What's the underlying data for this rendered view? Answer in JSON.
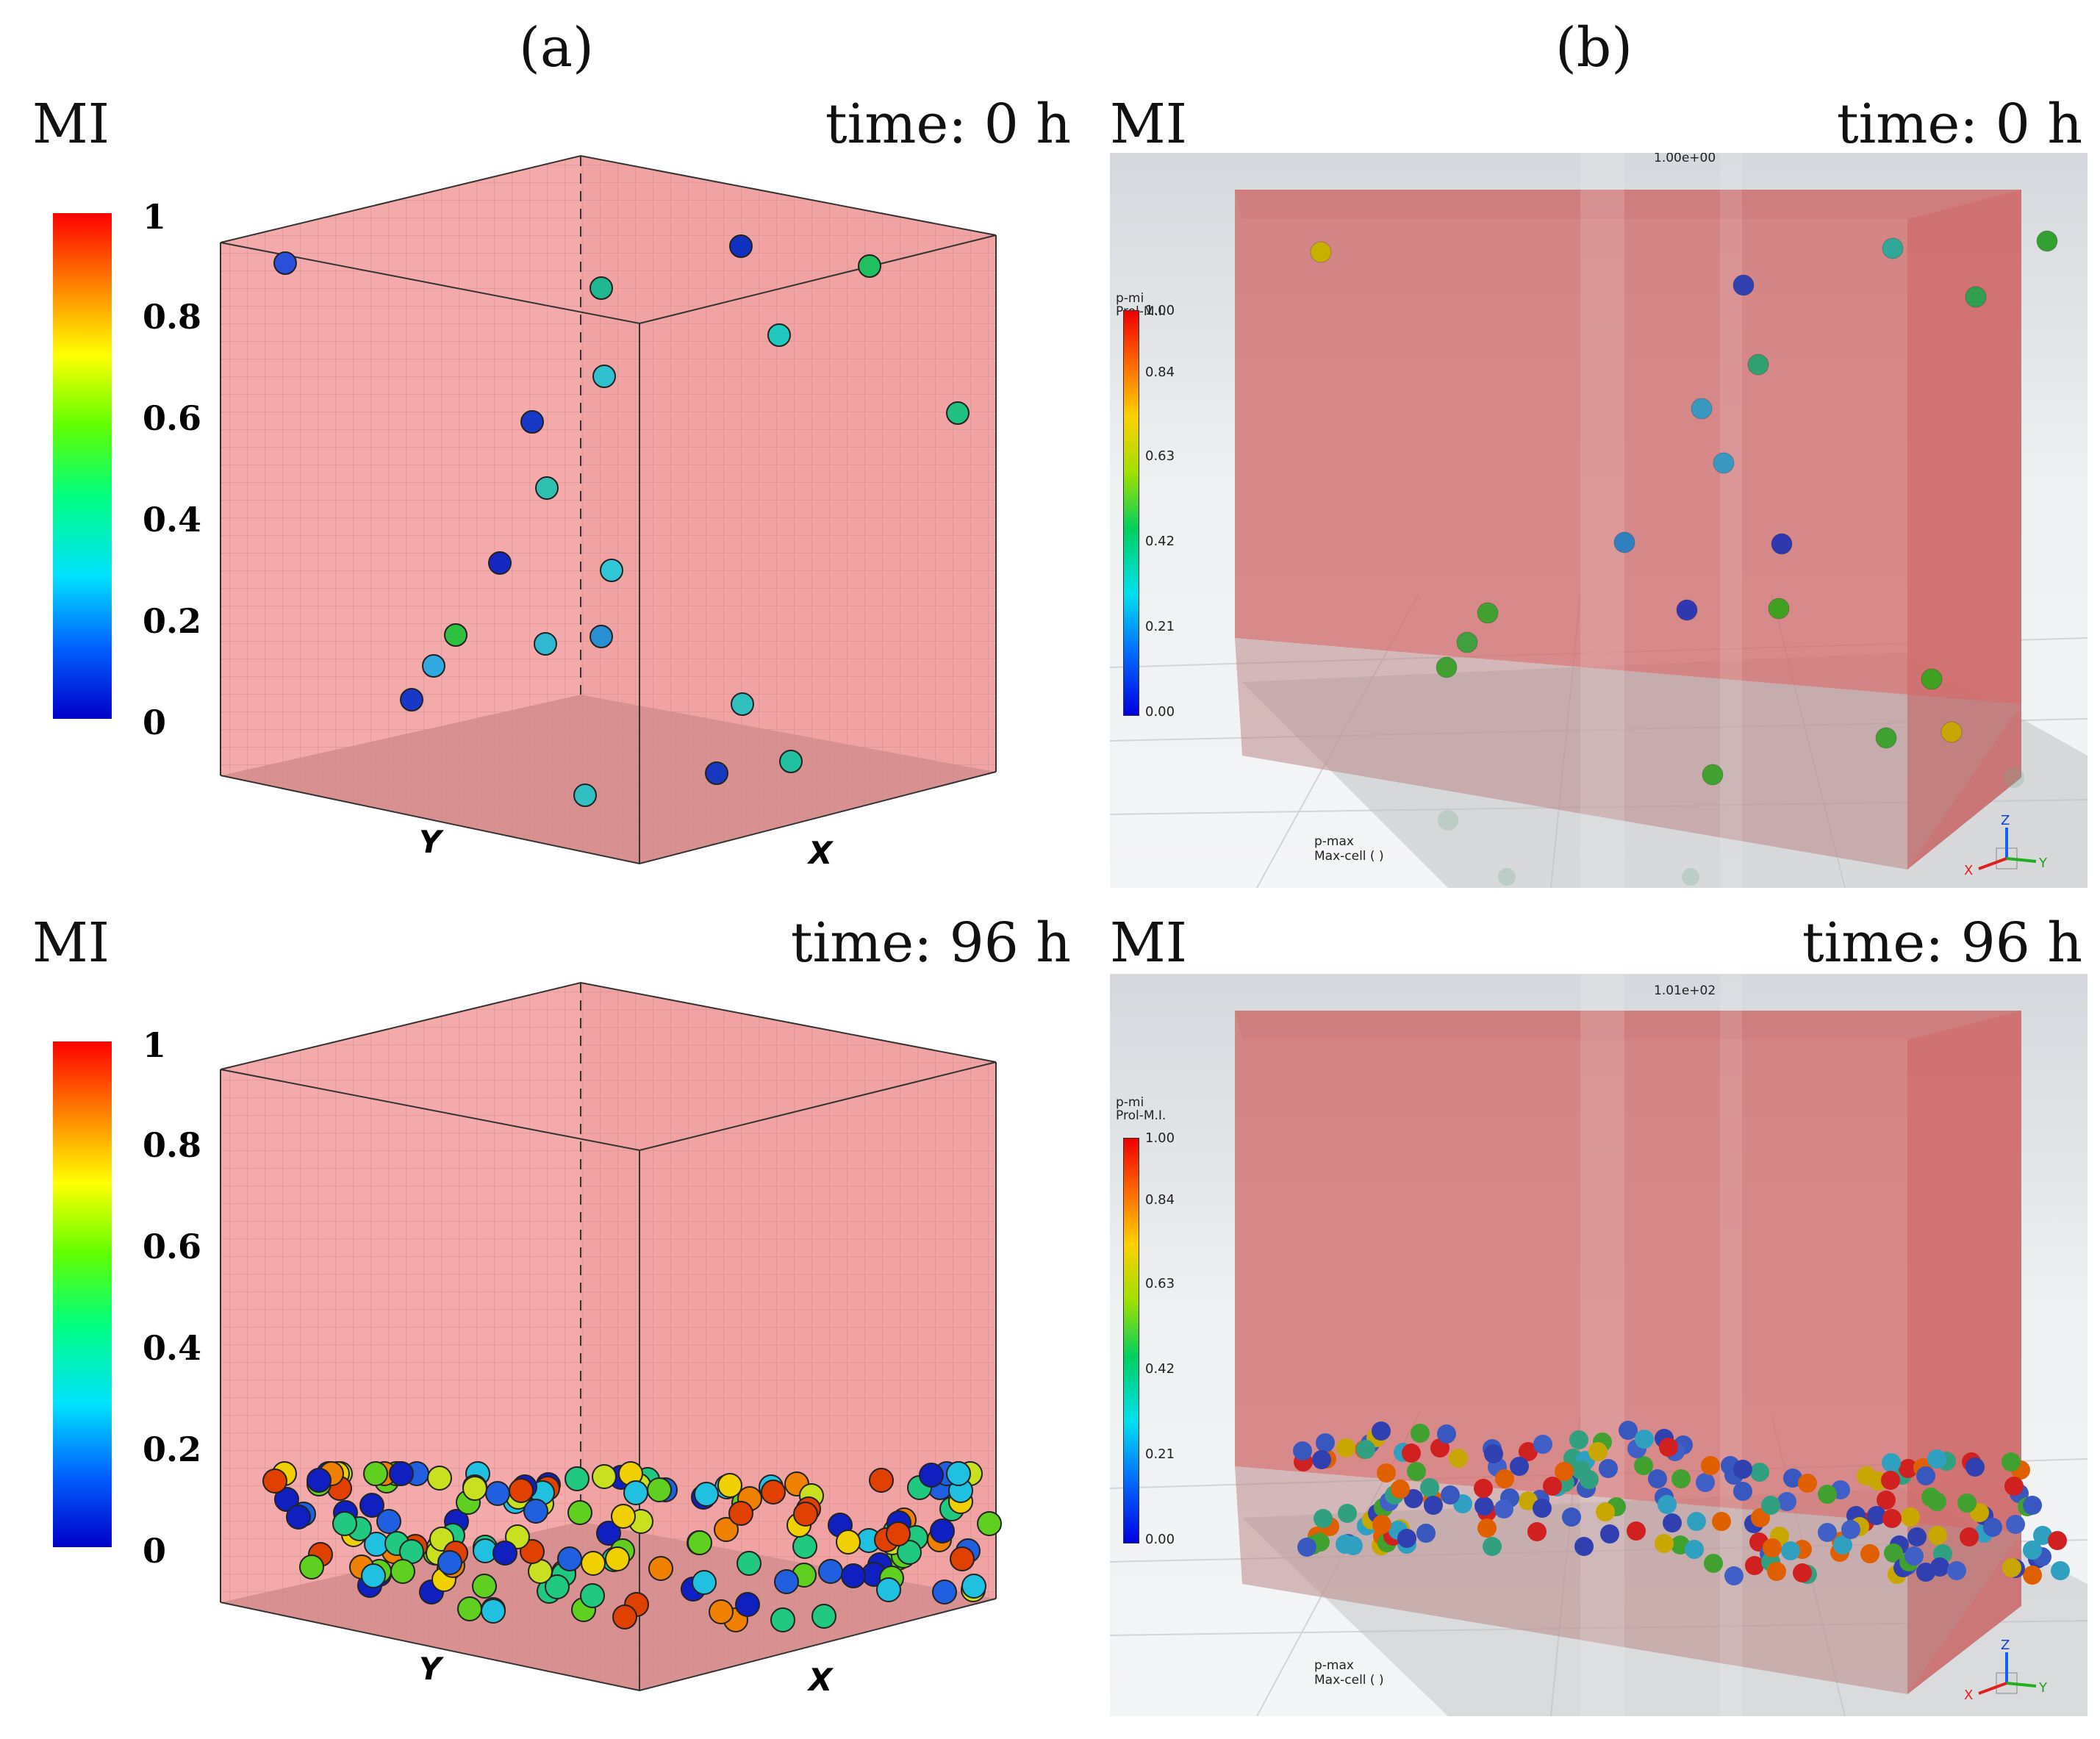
{
  "columns": {
    "a": "(a)",
    "b": "(b)"
  },
  "rows": [
    {
      "mi_label": "MI",
      "time_label": "time: 0 h",
      "b_top_value": "1.00e+00"
    },
    {
      "mi_label": "MI",
      "time_label": "time: 96 h",
      "b_top_value": "1.01e+02"
    }
  ],
  "colorbar_a": {
    "ticks": [
      "1",
      "0.8",
      "0.6",
      "0.4",
      "0.2",
      "0"
    ]
  },
  "colorbar_b": {
    "title_line1": "p-mi",
    "title_line2": "Prol-M.I.",
    "ticks": [
      "1.00",
      "0.84",
      "0.63",
      "0.42",
      "0.21",
      "0.00"
    ]
  },
  "b_panels": [
    {
      "legend_line1": "p-max",
      "legend_line2": "Max-cell ( )"
    },
    {
      "legend_line1": "p-max",
      "legend_line2": "Max-cell ( )"
    }
  ],
  "axes_a": {
    "y_label": "Y",
    "x_label": "X"
  },
  "triad": {
    "z": "Z",
    "x": "X",
    "y": "Y"
  }
}
